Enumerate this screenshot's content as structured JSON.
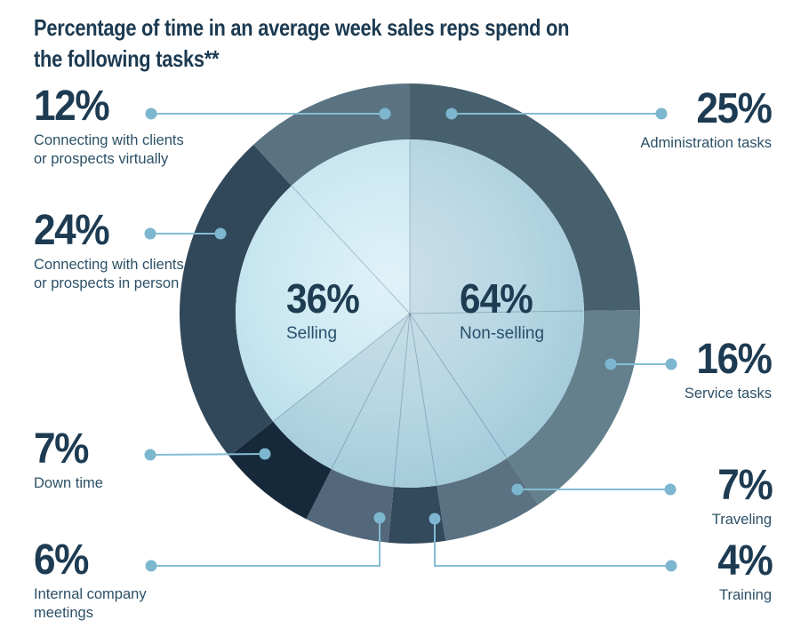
{
  "title": "Percentage of time in an average week sales reps spend on the following tasks**",
  "title_lines": [
    "Percentage of time in an average week sales reps spend on",
    "the following tasks**"
  ],
  "chart_data": {
    "type": "pie",
    "variant": "donut-ring-with-inner-pie",
    "title": "Percentage of time in an average week sales reps spend on the following tasks**",
    "start": "top",
    "direction": "clockwise",
    "outer_ring": {
      "segments": [
        {
          "label": "25%",
          "value": 25,
          "name": "Administration tasks",
          "color": "#47606e",
          "side": "right"
        },
        {
          "label": "16%",
          "value": 16,
          "name": "Service tasks",
          "color": "#64808d",
          "side": "right"
        },
        {
          "label": "7%",
          "value": 7,
          "name": "Traveling",
          "color": "#5a7282",
          "side": "right"
        },
        {
          "label": "4%",
          "value": 4,
          "name": "Training",
          "color": "#33495c",
          "side": "right"
        },
        {
          "label": "6%",
          "value": 6,
          "name": "Internal company meetings",
          "color": "#53687a",
          "side": "left"
        },
        {
          "label": "7%",
          "value": 7,
          "name": "Down time",
          "color": "#16293a",
          "side": "left"
        },
        {
          "label": "24%",
          "value": 24,
          "name": "Connecting with clients or prospects in person",
          "color": "#31485a",
          "side": "left"
        },
        {
          "label": "12%",
          "value": 12,
          "name": "Connecting with clients or prospects virtually",
          "color": "#5a7382",
          "side": "left"
        }
      ]
    },
    "inner_pie": {
      "segments": [
        {
          "label": "64%",
          "value": 64,
          "name": "Non-selling"
        },
        {
          "label": "36%",
          "value": 36,
          "name": "Selling"
        }
      ]
    },
    "colors": {
      "leader_line": "#85bcd4",
      "leader_dot": "#7db6cf",
      "number_text": "#1d3b52",
      "desc_text": "#2c5067",
      "title_text": "#1c3a51",
      "pie_center": "#e0f2f8",
      "pie_mid": "#c9e7f1",
      "pie_edge": "#a5d2e2"
    }
  }
}
